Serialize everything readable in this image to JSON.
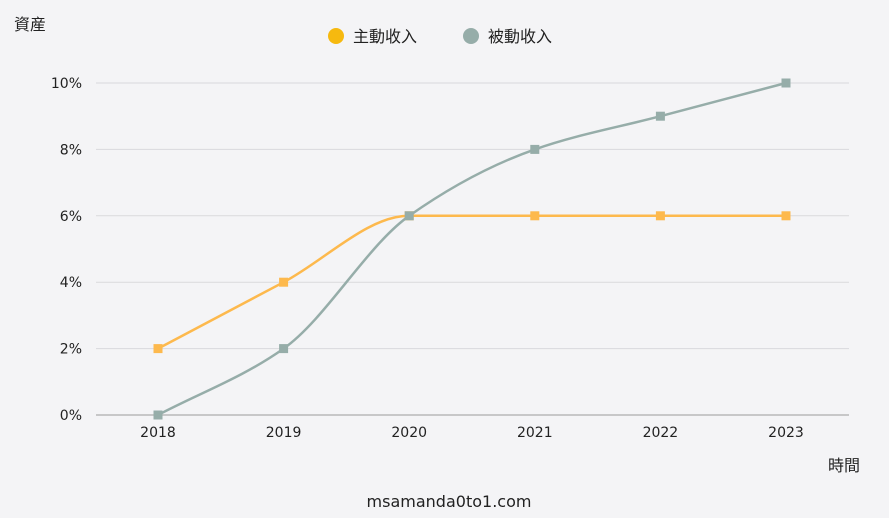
{
  "chart_data": {
    "type": "line",
    "ylabel": "資産",
    "xlabel": "時間",
    "x": [
      "2018",
      "2019",
      "2020",
      "2021",
      "2022",
      "2023"
    ],
    "ylim": [
      0,
      10
    ],
    "yticks": [
      "0%",
      "2%",
      "4%",
      "6%",
      "8%",
      "10%"
    ],
    "grid": true,
    "legend_position": "top-center",
    "series": [
      {
        "name": "主動收入",
        "values": [
          2,
          4,
          6,
          6,
          6,
          6
        ],
        "color": "#fdb94d",
        "legend_color": "#f6b90f"
      },
      {
        "name": "被動收入",
        "values": [
          0,
          2,
          6,
          8,
          9,
          10
        ],
        "color": "#96ada9",
        "legend_color": "#96ada9"
      }
    ]
  },
  "footer": {
    "text": "msamanda0to1.com"
  }
}
